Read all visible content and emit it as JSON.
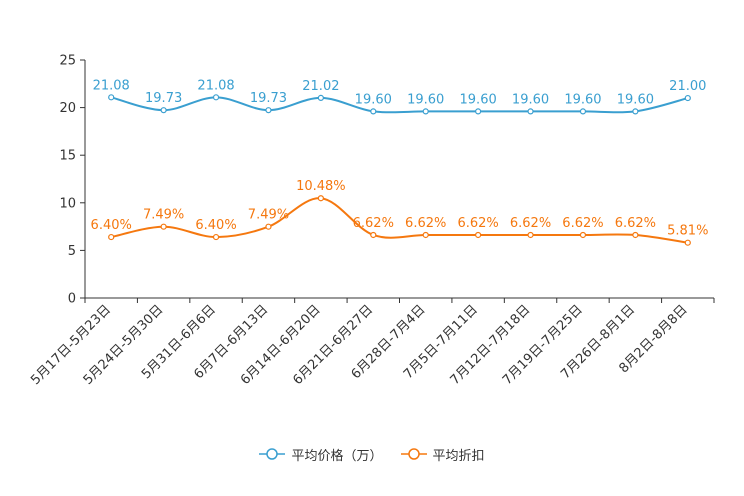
{
  "chart_data": {
    "type": "line",
    "categories": [
      "5月17日-5月23日",
      "5月24日-5月30日",
      "5月31日-6月6日",
      "6月7日-6月13日",
      "6月14日-6月20日",
      "6月21日-6月27日",
      "6月28日-7月4日",
      "7月5日-7月11日",
      "7月12日-7月18日",
      "7月19日-7月25日",
      "7月26日-8月1日",
      "8月2日-8月8日"
    ],
    "ylim": [
      0,
      25
    ],
    "yticks": [
      0,
      5,
      10,
      15,
      20,
      25
    ],
    "series": [
      {
        "name": "平均价格（万）",
        "color": "#3a9fd0",
        "values": [
          21.08,
          19.73,
          21.08,
          19.73,
          21.02,
          19.6,
          19.6,
          19.6,
          19.6,
          19.6,
          19.6,
          21.0
        ],
        "labels": [
          "21.08",
          "19.73",
          "21.08",
          "19.73",
          "21.02",
          "19.60",
          "19.60",
          "19.60",
          "19.60",
          "19.60",
          "19.60",
          "21.00"
        ]
      },
      {
        "name": "平均折扣",
        "color": "#f5780f",
        "values": [
          6.4,
          7.49,
          6.4,
          7.49,
          10.48,
          6.62,
          6.62,
          6.62,
          6.62,
          6.62,
          6.62,
          5.81
        ],
        "labels": [
          "6.40%",
          "7.49%",
          "6.40%",
          "7.49%",
          "10.48%",
          "6.62%",
          "6.62%",
          "6.62%",
          "6.62%",
          "6.62%",
          "6.62%",
          "5.81%"
        ]
      }
    ],
    "legend_position": "bottom"
  }
}
